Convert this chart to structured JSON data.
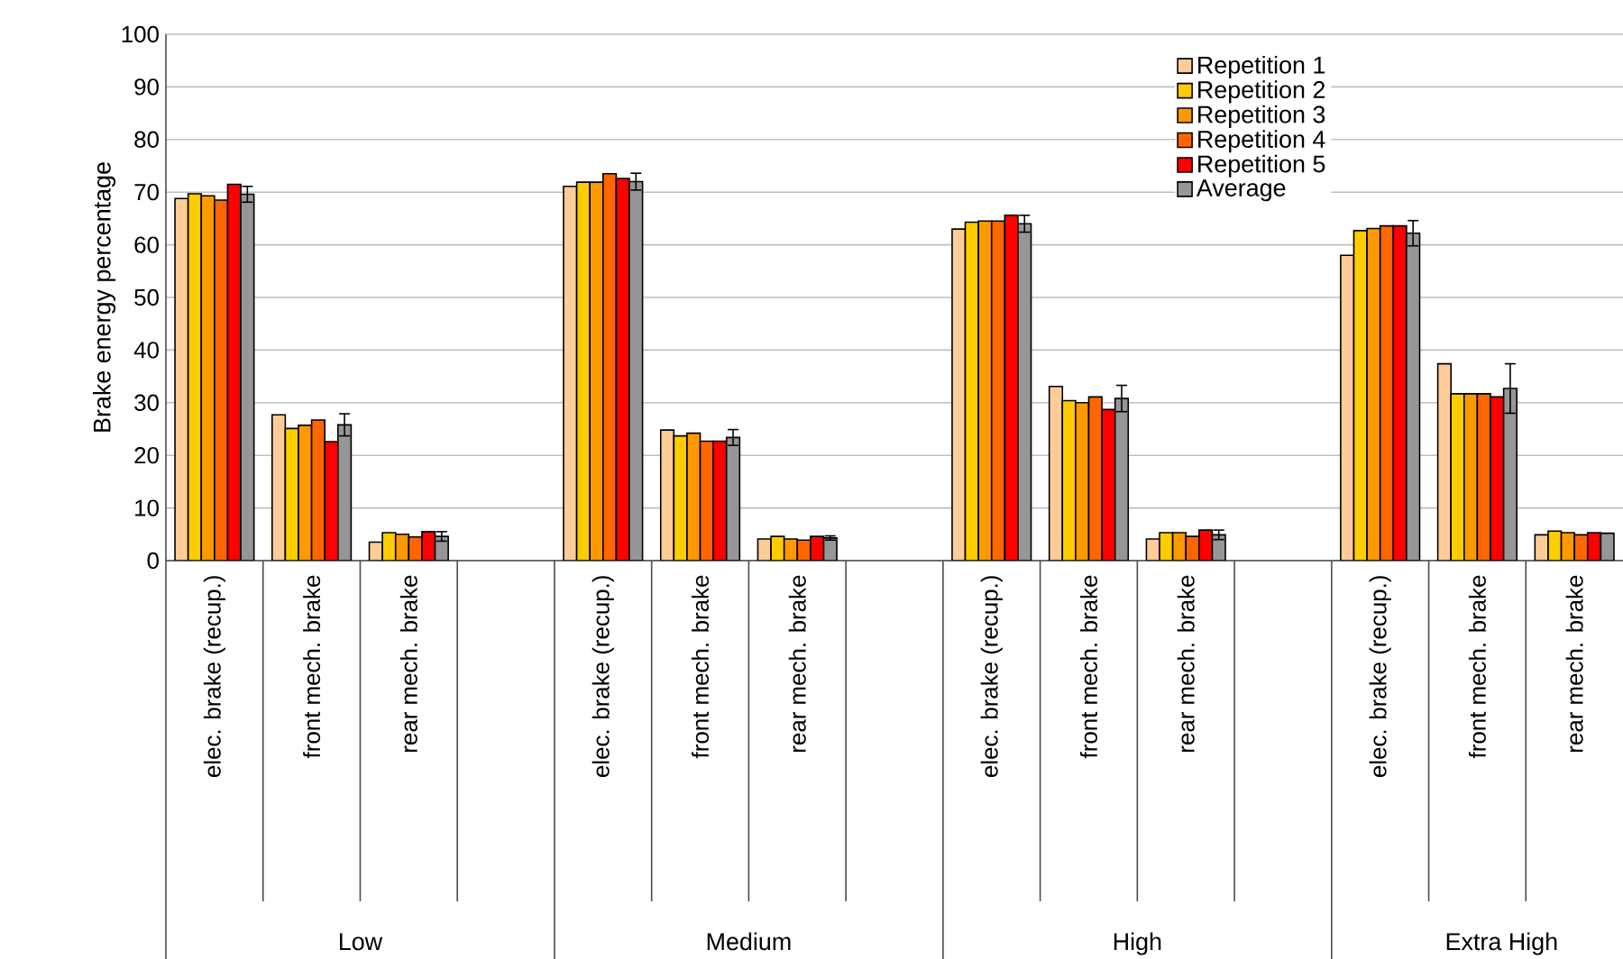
{
  "chart_data": {
    "type": "bar",
    "ylabel": "Brake energy percentage",
    "categories": [
      "elec. brake (recup.)",
      "front mech. brake",
      "rear mech. brake",
      null,
      "elec. brake (recup.)",
      "front mech. brake",
      "rear mech. brake",
      null,
      "elec. brake (recup.)",
      "front mech. brake",
      "rear mech. brake",
      null,
      "elec. brake (recup.)",
      "front mech. brake",
      "rear mech. brake"
    ],
    "series": [
      {
        "name": "Repetition 1",
        "color": "#ffcc99",
        "values": [
          68.8,
          27.7,
          3.5,
          null,
          71.1,
          24.8,
          4.1,
          null,
          63.0,
          33.1,
          4.1,
          null,
          58.0,
          37.4,
          4.9
        ]
      },
      {
        "name": "Repetition 2",
        "color": "#ffcc00",
        "values": [
          69.7,
          25.1,
          5.3,
          null,
          71.9,
          23.7,
          4.6,
          null,
          64.3,
          30.4,
          5.3,
          null,
          62.7,
          31.7,
          5.6
        ]
      },
      {
        "name": "Repetition 3",
        "color": "#ff9900",
        "values": [
          69.3,
          25.7,
          5.0,
          null,
          71.9,
          24.2,
          4.1,
          null,
          64.5,
          30.0,
          5.3,
          null,
          63.1,
          31.7,
          5.3
        ]
      },
      {
        "name": "Repetition 4",
        "color": "#ff6600",
        "values": [
          68.5,
          26.7,
          4.5,
          null,
          73.5,
          22.7,
          3.9,
          null,
          64.5,
          31.1,
          4.6,
          null,
          63.6,
          31.7,
          4.9
        ]
      },
      {
        "name": "Repetition 5",
        "color": "#ff0000",
        "values": [
          71.5,
          22.6,
          5.5,
          null,
          72.6,
          22.7,
          4.6,
          null,
          65.6,
          28.7,
          5.8,
          null,
          63.6,
          31.1,
          5.3
        ]
      },
      {
        "name": "Average",
        "color": "#969696",
        "values": [
          69.6,
          25.8,
          4.6,
          null,
          72.0,
          23.4,
          4.3,
          null,
          64.0,
          30.8,
          4.9,
          null,
          62.2,
          32.7,
          5.2
        ],
        "errors": [
          1.5,
          2.1,
          0.9,
          null,
          1.6,
          1.5,
          0.4,
          null,
          1.6,
          2.5,
          0.9,
          null,
          2.4,
          4.7,
          null
        ]
      }
    ],
    "ylim": [
      0,
      100
    ],
    "yticks": [
      0,
      10,
      20,
      30,
      40,
      50,
      60,
      70,
      80,
      90,
      100
    ],
    "grid": "y",
    "legend": "top right",
    "annotations": [
      "Low",
      "Medium",
      "High",
      "Extra High"
    ]
  }
}
